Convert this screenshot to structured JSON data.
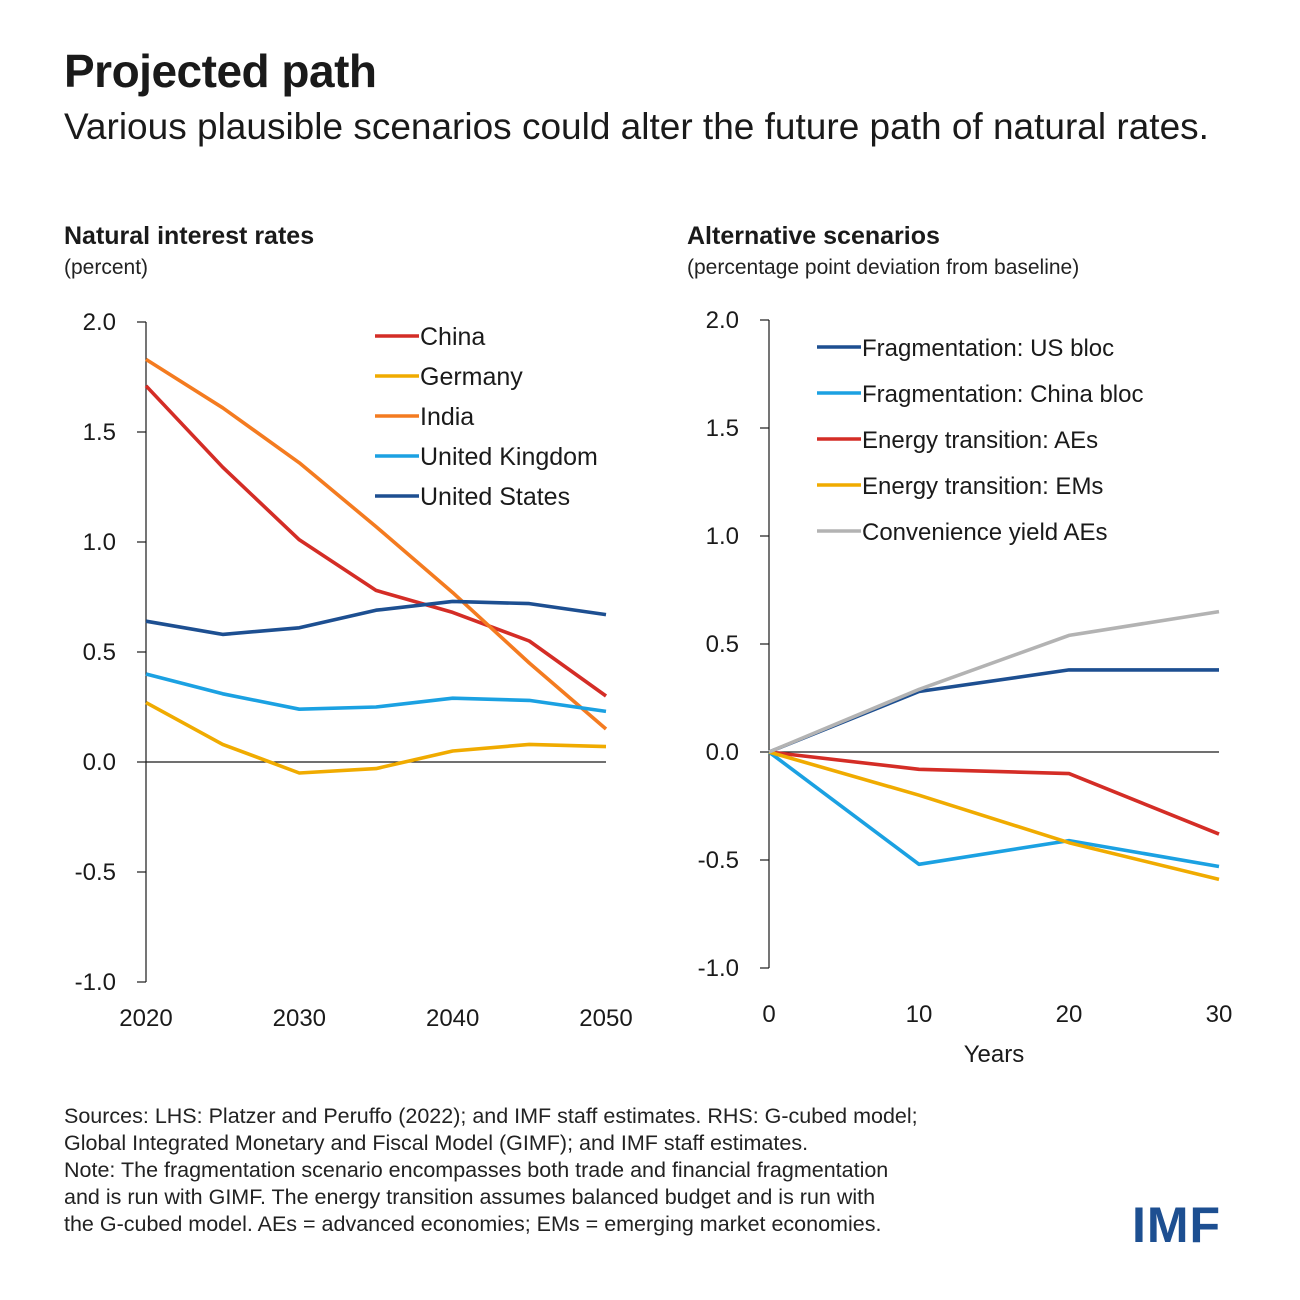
{
  "header": {
    "title": "Projected path",
    "subtitle": "Various plausible scenarios could alter the future path of natural rates."
  },
  "chart_data": [
    {
      "type": "line",
      "title": "Natural interest rates",
      "unit": "(percent)",
      "xlabel": "",
      "ylabel": "",
      "x": [
        2020,
        2025,
        2030,
        2035,
        2040,
        2045,
        2050
      ],
      "xticks": [
        2020,
        2030,
        2040,
        2050
      ],
      "yticks": [
        2.0,
        1.5,
        1.0,
        0.5,
        0.0,
        -0.5,
        -1.0
      ],
      "ytick_labels": [
        "2.0",
        "1.5",
        "1.0",
        "0.5",
        "0.0",
        "-0.5",
        "-1.0"
      ],
      "ylim": [
        -1.0,
        2.0
      ],
      "xlim": [
        2020,
        2050
      ],
      "legend_position": "top-right",
      "series": [
        {
          "name": "China",
          "color": "#d42d26",
          "values": [
            1.71,
            1.34,
            1.01,
            0.78,
            0.68,
            0.55,
            0.3
          ]
        },
        {
          "name": "Germany",
          "color": "#f0ab00",
          "values": [
            0.27,
            0.08,
            -0.05,
            -0.03,
            0.05,
            0.08,
            0.07
          ]
        },
        {
          "name": "India",
          "color": "#f47b20",
          "values": [
            1.83,
            1.61,
            1.36,
            1.07,
            0.77,
            0.45,
            0.15
          ]
        },
        {
          "name": "United Kingdom",
          "color": "#1ba1e2",
          "values": [
            0.4,
            0.31,
            0.24,
            0.25,
            0.29,
            0.28,
            0.23
          ]
        },
        {
          "name": "United States",
          "color": "#1d4f91",
          "values": [
            0.64,
            0.58,
            0.61,
            0.69,
            0.73,
            0.72,
            0.67
          ]
        }
      ]
    },
    {
      "type": "line",
      "title": "Alternative scenarios",
      "unit": "(percentage point deviation from baseline)",
      "xlabel": "Years",
      "ylabel": "",
      "x": [
        0,
        10,
        20,
        30
      ],
      "xticks": [
        0,
        10,
        20,
        30
      ],
      "yticks": [
        2.0,
        1.5,
        1.0,
        0.5,
        0.0,
        -0.5,
        -1.0
      ],
      "ytick_labels": [
        "2.0",
        "1.5",
        "1.0",
        "0.5",
        "0.0",
        "-0.5",
        "-1.0"
      ],
      "ylim": [
        -1.0,
        2.0
      ],
      "xlim": [
        0,
        30
      ],
      "legend_position": "top-right",
      "series": [
        {
          "name": "Fragmentation: US bloc",
          "color": "#1d4f91",
          "values": [
            0.0,
            0.28,
            0.38,
            0.38
          ]
        },
        {
          "name": "Fragmentation: China bloc",
          "color": "#1ba1e2",
          "values": [
            0.0,
            -0.52,
            -0.41,
            -0.53
          ]
        },
        {
          "name": "Energy transition: AEs",
          "color": "#d42d26",
          "values": [
            0.0,
            -0.08,
            -0.1,
            -0.38
          ]
        },
        {
          "name": "Energy transition: EMs",
          "color": "#f0ab00",
          "values": [
            0.0,
            -0.2,
            -0.42,
            -0.59
          ]
        },
        {
          "name": "Convenience yield AEs",
          "color": "#b3b3b3",
          "values": [
            0.0,
            0.29,
            0.54,
            0.65
          ]
        }
      ]
    }
  ],
  "notes": {
    "lines": [
      "Sources: LHS: Platzer and Peruffo (2022); and IMF staff estimates. RHS: G-cubed model;",
      "Global Integrated Monetary and Fiscal Model (GIMF); and IMF staff estimates.",
      "Note: The fragmentation scenario encompasses both trade and financial fragmentation",
      "and is run with GIMF. The energy transition assumes balanced budget and is run with",
      "the G-cubed model. AEs = advanced economies; EMs = emerging market economies."
    ]
  },
  "logo": {
    "text": "IMF"
  }
}
